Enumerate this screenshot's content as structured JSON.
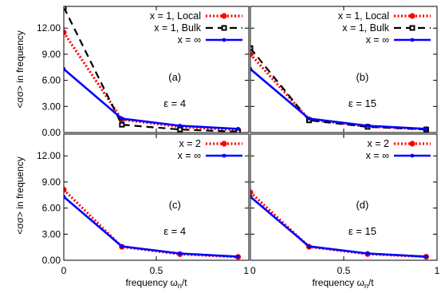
{
  "chart_data": {
    "type": "line",
    "x_tick_labels": [
      "0",
      "0.5",
      "1"
    ],
    "y_tick_labels": [
      "0.00",
      "3.00",
      "6.00",
      "9.00",
      "12.00"
    ],
    "xlabel": "frequency ω",
    "xlabel_sub": "n",
    "xlabel_suffix": "/t",
    "ylabel": "<σσ> in frequency",
    "xlim": [
      0,
      1
    ],
    "ylim": [
      0,
      14.5
    ],
    "grid": false,
    "legend_placement": "top-right",
    "panels": [
      {
        "id": "a",
        "label": "(a)",
        "epsilon_label": "ε = 4",
        "series": [
          {
            "name": "x = 1, Local",
            "style": "red-dotted",
            "color": "#ff0000",
            "marker": "circle",
            "x": [
              0,
              0.314,
              0.628,
              0.942
            ],
            "y": [
              11.5,
              1.5,
              0.65,
              0.3
            ]
          },
          {
            "name": "x = 1, Bulk",
            "style": "black-dashed",
            "color": "#000000",
            "marker": "square",
            "x": [
              0,
              0.314,
              0.628,
              0.942
            ],
            "y": [
              14.4,
              0.9,
              0.35,
              0.1
            ]
          },
          {
            "name": "x = ∞",
            "style": "blue-solid",
            "color": "#0000ff",
            "marker": "dot",
            "x": [
              0,
              0.314,
              0.628,
              0.942
            ],
            "y": [
              7.3,
              1.6,
              0.78,
              0.42
            ]
          }
        ]
      },
      {
        "id": "b",
        "label": "(b)",
        "epsilon_label": "ε = 15",
        "series": [
          {
            "name": "x = 1, Local",
            "style": "red-dotted",
            "color": "#ff0000",
            "marker": "circle",
            "x": [
              0,
              0.314,
              0.628,
              0.942
            ],
            "y": [
              9.0,
              1.5,
              0.7,
              0.38
            ]
          },
          {
            "name": "x = 1, Bulk",
            "style": "black-dashed",
            "color": "#000000",
            "marker": "square",
            "x": [
              0,
              0.314,
              0.628,
              0.942
            ],
            "y": [
              9.7,
              1.4,
              0.65,
              0.35
            ]
          },
          {
            "name": "x = ∞",
            "style": "blue-solid",
            "color": "#0000ff",
            "marker": "dot",
            "x": [
              0,
              0.314,
              0.628,
              0.942
            ],
            "y": [
              7.3,
              1.6,
              0.78,
              0.42
            ]
          }
        ]
      },
      {
        "id": "c",
        "label": "(c)",
        "epsilon_label": "ε = 4",
        "series": [
          {
            "name": "x = 2",
            "style": "red-dotted",
            "color": "#ff0000",
            "marker": "circle",
            "x": [
              0,
              0.314,
              0.628,
              0.942
            ],
            "y": [
              8.1,
              1.55,
              0.7,
              0.38
            ]
          },
          {
            "name": "x = ∞",
            "style": "blue-solid",
            "color": "#0000ff",
            "marker": "dot",
            "x": [
              0,
              0.314,
              0.628,
              0.942
            ],
            "y": [
              7.3,
              1.6,
              0.78,
              0.42
            ]
          }
        ]
      },
      {
        "id": "d",
        "label": "(d)",
        "epsilon_label": "ε = 15",
        "series": [
          {
            "name": "x = 2",
            "style": "red-dotted",
            "color": "#ff0000",
            "marker": "circle",
            "x": [
              0,
              0.314,
              0.628,
              0.942
            ],
            "y": [
              7.8,
              1.55,
              0.72,
              0.4
            ]
          },
          {
            "name": "x = ∞",
            "style": "blue-solid",
            "color": "#0000ff",
            "marker": "dot",
            "x": [
              0,
              0.314,
              0.628,
              0.942
            ],
            "y": [
              7.3,
              1.6,
              0.78,
              0.42
            ]
          }
        ]
      }
    ]
  }
}
